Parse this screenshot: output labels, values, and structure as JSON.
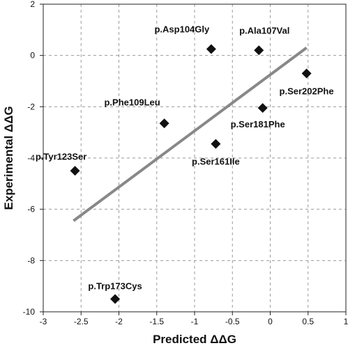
{
  "chart_data": {
    "type": "scatter",
    "title": "",
    "xlabel": "Predicted ΔΔG",
    "ylabel": "Experimental ΔΔG",
    "xlim": [
      -3,
      1
    ],
    "ylim": [
      -10,
      2
    ],
    "x_ticks": [
      -3,
      -2.5,
      -2,
      -1.5,
      -1,
      -0.5,
      0,
      0.5,
      1
    ],
    "y_ticks": [
      -10,
      -8,
      -6,
      -4,
      -2,
      0,
      2
    ],
    "grid": "dashed",
    "legend": "none",
    "marker": "diamond",
    "marker_color": "#111111",
    "trendline_color": "#888888",
    "points": [
      {
        "label": "p.Asp104Gly",
        "x": -0.78,
        "y": 0.25
      },
      {
        "label": "p.Ala107Val",
        "x": -0.15,
        "y": 0.2
      },
      {
        "label": "p.Ser202Phe",
        "x": 0.48,
        "y": -0.7
      },
      {
        "label": "p.Phe109Leu",
        "x": -1.4,
        "y": -2.65
      },
      {
        "label": "p.Ser181Phe",
        "x": -0.1,
        "y": -2.05
      },
      {
        "label": "p.Ser161Ile",
        "x": -0.72,
        "y": -3.45
      },
      {
        "label": "p.Tyr123Ser",
        "x": -2.58,
        "y": -4.5
      },
      {
        "label": "p.Trp173Cys",
        "x": -2.05,
        "y": -9.5
      }
    ],
    "trendline": {
      "x": [
        -2.6,
        0.48
      ],
      "y": [
        -6.45,
        0.3
      ]
    }
  }
}
